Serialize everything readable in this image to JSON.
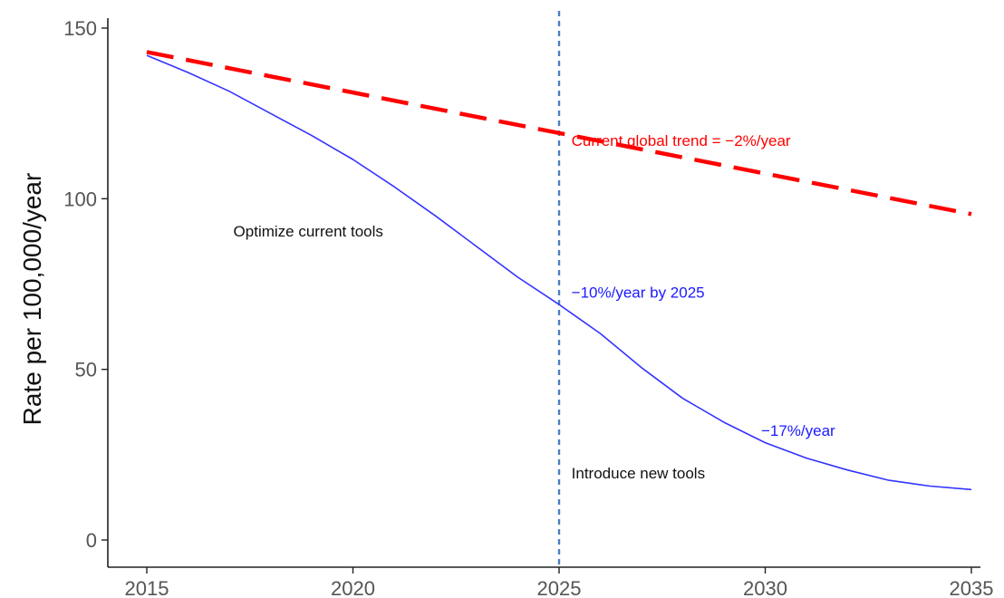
{
  "chart_data": {
    "type": "line",
    "title": "",
    "xlabel": "",
    "ylabel": "Rate per 100,000/year",
    "xlim": [
      2014,
      2036
    ],
    "ylim": [
      -8,
      152
    ],
    "x_ticks": [
      2015,
      2020,
      2025,
      2030,
      2035
    ],
    "y_ticks": [
      0,
      50,
      100,
      150
    ],
    "grid": false,
    "legend": "none",
    "vline": {
      "x": 2025,
      "color": "#4a7fc1",
      "style": "dashed"
    },
    "series": [
      {
        "color": "#ff0000",
        "style": "dashed",
        "x": [
          2015,
          2035
        ],
        "y": [
          143,
          95.5
        ]
      },
      {
        "color": "#3333ff",
        "style": "solid",
        "x": [
          2015,
          2016,
          2017,
          2018,
          2019,
          2020,
          2021,
          2022,
          2023,
          2024,
          2025,
          2026,
          2027,
          2028,
          2029,
          2030,
          2031,
          2032,
          2033,
          2034,
          2035
        ],
        "y": [
          142,
          137,
          131.5,
          125,
          118.5,
          111.5,
          103.5,
          95,
          86,
          77,
          69,
          60.5,
          50.5,
          41.5,
          34.5,
          28.5,
          24,
          20.5,
          17.5,
          15.8,
          14.8
        ]
      }
    ],
    "annotations": [
      {
        "text": "Current global trend = −2%/year",
        "x": 2025.3,
        "y": 115.5,
        "color": "#ff0000"
      },
      {
        "text": "Optimize current tools",
        "x": 2017.1,
        "y": 89,
        "color": "#111111"
      },
      {
        "text": "−10%/year by 2025",
        "x": 2025.3,
        "y": 71,
        "color": "#1a1aff"
      },
      {
        "text": "−17%/year",
        "x": 2029.9,
        "y": 30.5,
        "color": "#1a1aff"
      },
      {
        "text": "Introduce new tools",
        "x": 2025.3,
        "y": 18,
        "color": "#111111"
      }
    ]
  }
}
